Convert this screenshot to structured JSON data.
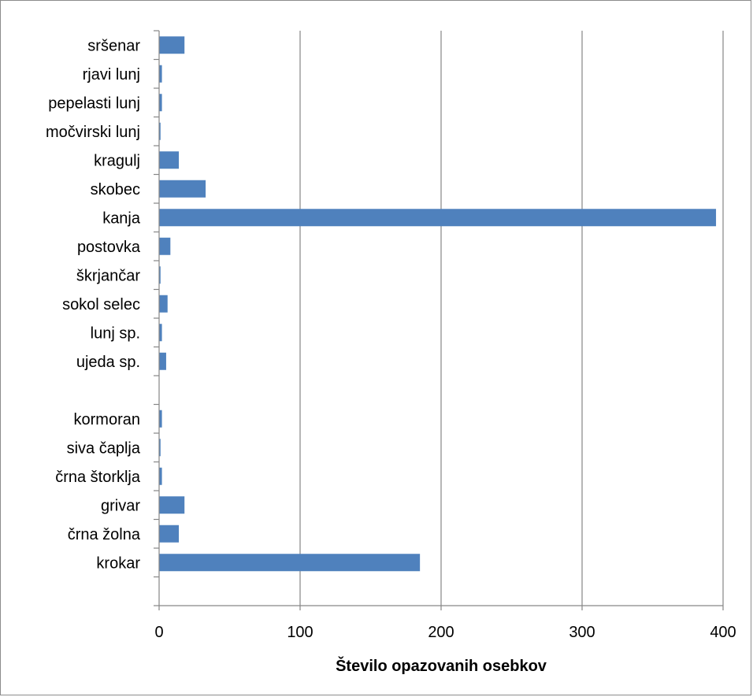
{
  "chart_data": {
    "type": "bar",
    "orientation": "horizontal",
    "categories": [
      "sršenar",
      "rjavi lunj",
      "pepelasti lunj",
      "močvirski lunj",
      "kragulj",
      "skobec",
      "kanja",
      "postovka",
      "škrjančar",
      "sokol selec",
      "lunj sp.",
      "ujeda sp.",
      "",
      "kormoran",
      "siva čaplja",
      "črna štorklja",
      "grivar",
      "črna žolna",
      "krokar",
      ""
    ],
    "values": [
      18,
      2,
      2,
      1,
      14,
      33,
      395,
      8,
      1,
      6,
      2,
      5,
      0,
      2,
      1,
      2,
      18,
      14,
      185,
      0
    ],
    "x_ticks": [
      "0",
      "100",
      "200",
      "300",
      "400"
    ],
    "xlim": [
      0,
      400
    ],
    "xlabel": "Število opazovanih osebkov",
    "ylabel": "",
    "title": "",
    "grid": "vertical major gridlines",
    "legend": "none",
    "colors": {
      "bar": "#4f81bd",
      "grid": "#868686",
      "axis": "#868686",
      "border": "#8c8c8c"
    }
  }
}
